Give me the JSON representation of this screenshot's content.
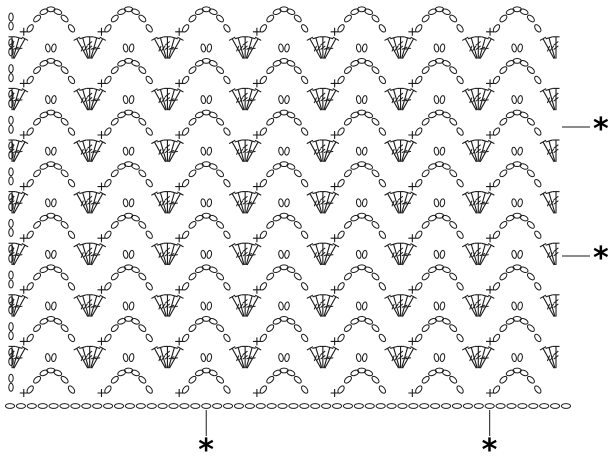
{
  "diagram": {
    "rows": 15,
    "repeats_per_row": 7,
    "foundation_chain_count": 52,
    "colors": {
      "ink": "#1a1a1a",
      "background": "#ffffff"
    },
    "symbols": [
      "chain",
      "single-crochet",
      "double-crochet",
      "treble-crochet"
    ],
    "repeat_markers": [
      {
        "label": "*",
        "side": "right",
        "row": 5
      },
      {
        "label": "*",
        "side": "right",
        "row": 10
      },
      {
        "label": "*",
        "side": "bottom",
        "chain_index": 19
      },
      {
        "label": "*",
        "side": "bottom",
        "chain_index": 45
      }
    ]
  }
}
